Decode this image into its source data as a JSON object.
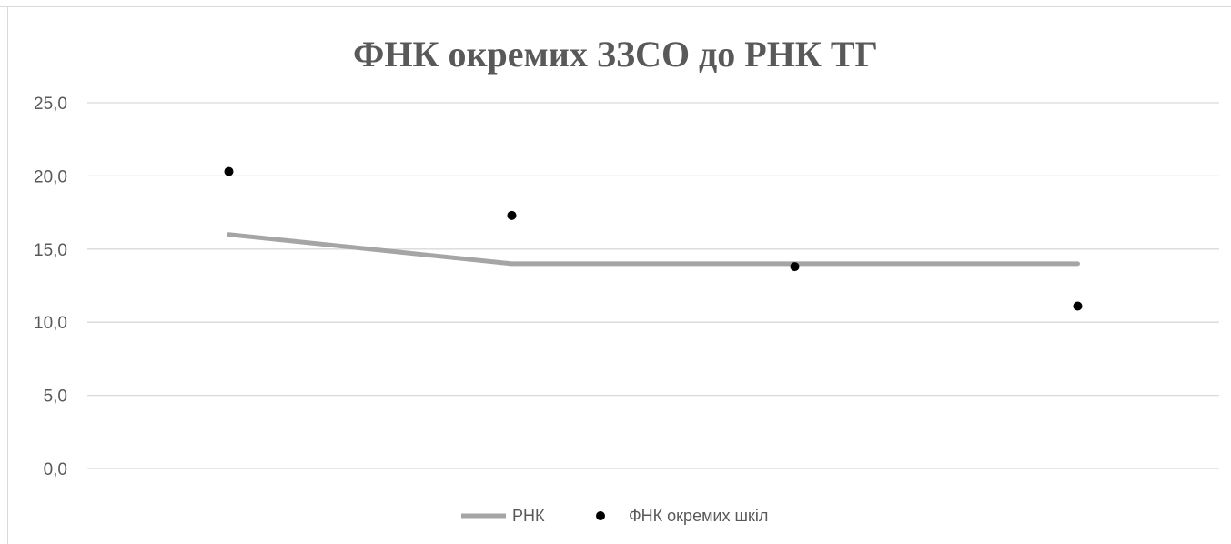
{
  "chart_data": {
    "type": "line",
    "title": "ФНК окремих ЗЗСО до РНК ТГ",
    "categories": [
      "",
      "",
      "",
      ""
    ],
    "series": [
      {
        "name": "РНК",
        "kind": "line",
        "values": [
          16.0,
          14.0,
          14.0,
          14.0
        ],
        "color": "#a5a5a5"
      },
      {
        "name": "ФНК окремих шкіл",
        "kind": "markers",
        "values": [
          20.3,
          17.3,
          13.8,
          11.1
        ],
        "color": "#000000"
      }
    ],
    "yticks": [
      "0,0",
      "5,0",
      "10,0",
      "15,0",
      "20,0",
      "25,0"
    ],
    "ylim": [
      0,
      25
    ],
    "grid": true,
    "legend_position": "bottom"
  }
}
